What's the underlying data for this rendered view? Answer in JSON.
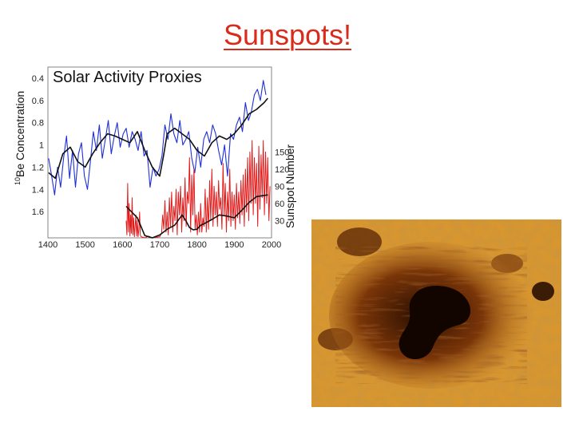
{
  "slide": {
    "title": "Sunspots!"
  },
  "photo": {
    "subject": "sunspot-photo"
  },
  "colors": {
    "title": "#d92b1c",
    "be10_raw": "#1f2fd6",
    "sunspot_raw": "#e01b1b",
    "smoothed": "#111111",
    "photo_dark": "#1a0800",
    "photo_mid": "#8a3c08",
    "photo_light": "#e7a33a"
  },
  "chart_data": {
    "type": "line",
    "title": "Solar Activity Proxies",
    "xlabel": "",
    "xlim": [
      1400,
      2000
    ],
    "x_ticks": [
      1400,
      1500,
      1600,
      1700,
      1800,
      1900,
      2000
    ],
    "left_axis": {
      "label_prefix": "10",
      "label": "Be Concentration",
      "range": [
        0.4,
        1.8
      ],
      "inverted": true,
      "ticks": [
        0.4,
        0.6,
        0.8,
        1,
        1.2,
        1.4,
        1.6
      ]
    },
    "right_axis": {
      "label": "Sunspot Number",
      "range": [
        0,
        170
      ],
      "ticks": [
        30,
        60,
        90,
        120,
        150
      ]
    },
    "series": [
      {
        "axis": "left",
        "x": [
          1402,
          1410,
          1418,
          1426,
          1434,
          1442,
          1450,
          1458,
          1466,
          1474,
          1482,
          1490,
          1498,
          1506,
          1514,
          1522,
          1530,
          1538,
          1546,
          1554,
          1562,
          1570,
          1578,
          1586,
          1594,
          1602,
          1610,
          1618,
          1626,
          1634,
          1642,
          1650,
          1658,
          1666,
          1674,
          1682,
          1690,
          1698,
          1706,
          1714,
          1722,
          1730,
          1738,
          1746,
          1754,
          1762,
          1770,
          1778,
          1786,
          1794,
          1802,
          1810,
          1818,
          1826,
          1834,
          1842,
          1850,
          1858,
          1866,
          1874,
          1882,
          1890,
          1898,
          1906,
          1914,
          1922,
          1930,
          1938,
          1946,
          1954,
          1962,
          1970,
          1978,
          1985
        ],
        "values": [
          1.12,
          1.28,
          1.45,
          1.2,
          1.38,
          1.12,
          0.92,
          1.3,
          1.05,
          1.38,
          1.08,
          0.98,
          1.28,
          1.4,
          1.15,
          0.88,
          1.05,
          0.82,
          1.12,
          0.95,
          0.78,
          1.08,
          0.92,
          0.8,
          1.02,
          0.9,
          0.85,
          1.02,
          0.88,
          0.95,
          1.05,
          0.88,
          1.1,
          1.05,
          1.38,
          1.2,
          1.28,
          1.22,
          1.1,
          0.82,
          0.95,
          0.72,
          0.9,
          0.98,
          0.78,
          1.0,
          0.95,
          0.88,
          1.12,
          1.25,
          1.02,
          1.2,
          0.95,
          0.88,
          0.98,
          0.82,
          0.9,
          1.05,
          1.18,
          1.0,
          1.28,
          0.9,
          0.95,
          0.82,
          0.75,
          0.88,
          0.62,
          0.78,
          0.7,
          0.55,
          0.5,
          0.6,
          0.42,
          0.55
        ]
      },
      {
        "axis": "left",
        "x": [
          1402,
          1420,
          1440,
          1460,
          1480,
          1500,
          1520,
          1540,
          1560,
          1580,
          1600,
          1620,
          1640,
          1660,
          1680,
          1700,
          1710,
          1720,
          1740,
          1760,
          1780,
          1800,
          1820,
          1840,
          1860,
          1880,
          1900,
          1920,
          1940,
          1960,
          1980,
          1990
        ],
        "values": [
          1.25,
          1.3,
          1.08,
          1.02,
          1.15,
          1.2,
          1.08,
          0.98,
          0.9,
          0.92,
          0.95,
          0.98,
          0.88,
          1.05,
          1.2,
          1.28,
          1.1,
          0.9,
          0.85,
          0.9,
          0.95,
          1.05,
          1.1,
          0.98,
          0.92,
          0.95,
          0.9,
          0.82,
          0.72,
          0.68,
          0.62,
          0.58
        ]
      },
      {
        "axis": "right",
        "x": [
          1610,
          1612,
          1614,
          1616,
          1618,
          1620,
          1622,
          1624,
          1626,
          1628,
          1630,
          1632,
          1634,
          1636,
          1638,
          1640,
          1642,
          1644,
          1646,
          1648,
          1650,
          1660,
          1670,
          1680,
          1690,
          1700,
          1705,
          1708,
          1711,
          1714,
          1717,
          1720,
          1723,
          1726,
          1729,
          1732,
          1735,
          1738,
          1741,
          1744,
          1747,
          1750,
          1753,
          1756,
          1759,
          1762,
          1765,
          1768,
          1771,
          1774,
          1777,
          1780,
          1783,
          1786,
          1789,
          1792,
          1795,
          1798,
          1801,
          1804,
          1807,
          1810,
          1813,
          1816,
          1819,
          1822,
          1825,
          1828,
          1831,
          1834,
          1837,
          1840,
          1843,
          1846,
          1849,
          1852,
          1855,
          1858,
          1861,
          1864,
          1867,
          1870,
          1873,
          1876,
          1879,
          1882,
          1885,
          1888,
          1891,
          1894,
          1897,
          1900,
          1903,
          1906,
          1909,
          1912,
          1915,
          1918,
          1921,
          1924,
          1927,
          1930,
          1933,
          1936,
          1939,
          1942,
          1945,
          1948,
          1951,
          1954,
          1957,
          1960,
          1963,
          1966,
          1969,
          1972,
          1975,
          1978,
          1981,
          1984,
          1987,
          1990,
          1993,
          1996
        ],
        "values": [
          30,
          5,
          95,
          10,
          60,
          3,
          40,
          8,
          70,
          5,
          35,
          2,
          20,
          40,
          3,
          30,
          2,
          15,
          45,
          5,
          2,
          0,
          3,
          0,
          1,
          2,
          8,
          40,
          15,
          65,
          10,
          45,
          5,
          70,
          20,
          80,
          10,
          55,
          30,
          85,
          5,
          80,
          40,
          90,
          10,
          70,
          30,
          105,
          20,
          80,
          60,
          140,
          10,
          110,
          40,
          120,
          15,
          40,
          5,
          45,
          10,
          60,
          10,
          35,
          20,
          85,
          10,
          70,
          15,
          100,
          30,
          120,
          20,
          90,
          40,
          80,
          20,
          100,
          50,
          70,
          15,
          130,
          40,
          95,
          10,
          80,
          30,
          120,
          20,
          80,
          30,
          75,
          15,
          95,
          35,
          80,
          25,
          100,
          40,
          110,
          20,
          120,
          45,
          140,
          30,
          150,
          60,
          170,
          40,
          140,
          60,
          130,
          20,
          160,
          50,
          145,
          70,
          170,
          40,
          150,
          60,
          140,
          30,
          90
        ]
      },
      {
        "axis": "right",
        "x": [
          1610,
          1640,
          1660,
          1680,
          1700,
          1720,
          1740,
          1760,
          1770,
          1780,
          1790,
          1800,
          1810,
          1820,
          1840,
          1860,
          1880,
          1900,
          1920,
          1940,
          1960,
          1990
        ],
        "values": [
          55,
          35,
          4,
          0,
          5,
          15,
          22,
          40,
          30,
          18,
          14,
          15,
          22,
          25,
          32,
          40,
          38,
          35,
          48,
          62,
          72,
          75
        ]
      }
    ]
  }
}
